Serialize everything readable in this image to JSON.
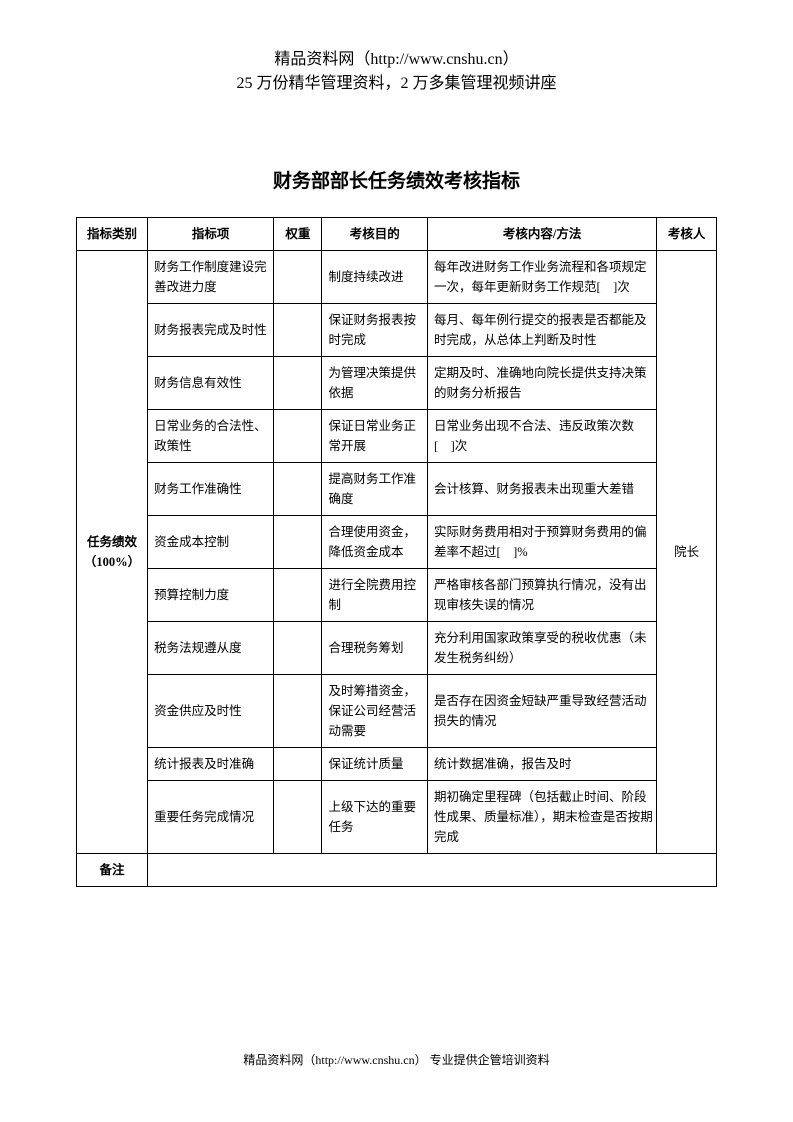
{
  "header": {
    "line1": "精品资料网（http://www.cnshu.cn）",
    "line2": "25 万份精华管理资料，2 万多集管理视频讲座"
  },
  "title": "财务部部长任务绩效考核指标",
  "table": {
    "columns": {
      "category": "指标类别",
      "item": "指标项",
      "weight": "权重",
      "purpose": "考核目的",
      "content": "考核内容/方法",
      "assessor": "考核人"
    },
    "category_label": "任务绩效（100%）",
    "assessor_label": "院长",
    "rows": [
      {
        "item": "财务工作制度建设完善改进力度",
        "weight": "",
        "purpose": "制度持续改进",
        "content": "每年改进财务工作业务流程和各项规定一次，每年更新财务工作规范[　]次"
      },
      {
        "item": "财务报表完成及时性",
        "weight": "",
        "purpose": "保证财务报表按时完成",
        "content": "每月、每年例行提交的报表是否都能及时完成，从总体上判断及时性"
      },
      {
        "item": "财务信息有效性",
        "weight": "",
        "purpose": "为管理决策提供依据",
        "content": "定期及时、准确地向院长提供支持决策的财务分析报告"
      },
      {
        "item": "日常业务的合法性、政策性",
        "weight": "",
        "purpose": "保证日常业务正常开展",
        "content": "日常业务出现不合法、违反政策次数[　]次"
      },
      {
        "item": "财务工作准确性",
        "weight": "",
        "purpose": "提高财务工作准确度",
        "content": "会计核算、财务报表未出现重大差错"
      },
      {
        "item": "资金成本控制",
        "weight": "",
        "purpose": "合理使用资金，降低资金成本",
        "content": "实际财务费用相对于预算财务费用的偏差率不超过[　]%"
      },
      {
        "item": "预算控制力度",
        "weight": "",
        "purpose": "进行全院费用控制",
        "content": "严格审核各部门预算执行情况，没有出现审核失误的情况"
      },
      {
        "item": "税务法规遵从度",
        "weight": "",
        "purpose": "合理税务筹划",
        "content": "充分利用国家政策享受的税收优惠（未发生税务纠纷）"
      },
      {
        "item": "资金供应及时性",
        "weight": "",
        "purpose": "及时筹措资金，保证公司经营活动需要",
        "content": "是否存在因资金短缺严重导致经营活动损失的情况"
      },
      {
        "item": "统计报表及时准确",
        "weight": "",
        "purpose": "保证统计质量",
        "content": "统计数据准确，报告及时"
      },
      {
        "item": "重要任务完成情况",
        "weight": "",
        "purpose": "上级下达的重要任务",
        "content": "期初确定里程碑（包括截止时间、阶段性成果、质量标准），期末检查是否按期完成"
      }
    ],
    "remark_label": "备注",
    "remark_content": ""
  },
  "footer": "精品资料网（http://www.cnshu.cn）  专业提供企管培训资料"
}
